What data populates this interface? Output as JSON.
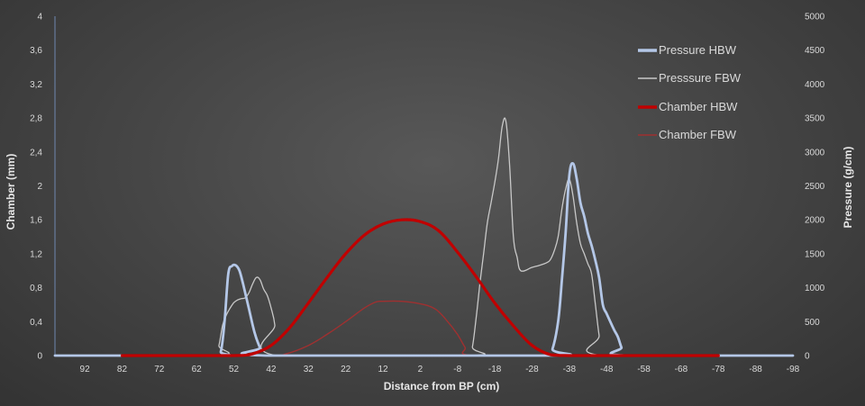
{
  "chart_data": {
    "type": "line",
    "xlabel": "Distance from BP (cm)",
    "ylabel_left": "Chamber (mm)",
    "ylabel_right": "Pressure (g/cm)",
    "x_range": [
      100,
      -98
    ],
    "x_ticks": [
      92,
      82,
      72,
      62,
      52,
      42,
      32,
      22,
      12,
      2,
      -8,
      -18,
      -28,
      -38,
      -48,
      -58,
      -68,
      -78,
      -88,
      -98
    ],
    "y_left_range": [
      0,
      4
    ],
    "y_left_ticks": [
      "0",
      "0,4",
      "0,8",
      "1,2",
      "1,6",
      "2",
      "2,4",
      "2,8",
      "3,2",
      "3,6",
      "4"
    ],
    "y_right_range": [
      0,
      5000
    ],
    "y_right_ticks": [
      "0",
      "500",
      "1000",
      "1500",
      "2000",
      "2500",
      "3000",
      "3500",
      "4000",
      "4500",
      "5000"
    ],
    "grid": false,
    "legend_position": "top-right",
    "series": [
      {
        "name": "Pressure HBW",
        "axis": "right",
        "color": "#b4c7e7",
        "points": [
          [
            100,
            0
          ],
          [
            57,
            0
          ],
          [
            55.5,
            60
          ],
          [
            54.5,
            500
          ],
          [
            53.5,
            1200
          ],
          [
            52.5,
            1320
          ],
          [
            51.5,
            1330
          ],
          [
            50.5,
            1250
          ],
          [
            49.5,
            1050
          ],
          [
            48,
            700
          ],
          [
            46.5,
            350
          ],
          [
            45,
            120
          ],
          [
            43.5,
            0
          ],
          [
            -32,
            0
          ],
          [
            -33.5,
            100
          ],
          [
            -35,
            500
          ],
          [
            -36,
            1100
          ],
          [
            -37,
            1800
          ],
          [
            -38,
            2650
          ],
          [
            -39,
            2830
          ],
          [
            -40,
            2600
          ],
          [
            -41,
            2250
          ],
          [
            -42,
            2050
          ],
          [
            -43,
            1800
          ],
          [
            -44,
            1620
          ],
          [
            -45,
            1400
          ],
          [
            -46,
            1150
          ],
          [
            -47,
            750
          ],
          [
            -48,
            620
          ],
          [
            -49,
            500
          ],
          [
            -50,
            380
          ],
          [
            -51,
            280
          ],
          [
            -52,
            120
          ],
          [
            -53,
            0
          ],
          [
            -98,
            0
          ]
        ]
      },
      {
        "name": "Presssure FBW",
        "axis": "right",
        "color": "#c8c8c8",
        "points": [
          [
            100,
            0
          ],
          [
            57,
            0
          ],
          [
            56,
            150
          ],
          [
            55,
            450
          ],
          [
            54,
            600
          ],
          [
            53,
            700
          ],
          [
            52,
            780
          ],
          [
            51,
            820
          ],
          [
            50,
            840
          ],
          [
            49,
            850
          ],
          [
            48,
            920
          ],
          [
            47,
            1050
          ],
          [
            46,
            1150
          ],
          [
            45,
            1120
          ],
          [
            44,
            980
          ],
          [
            43,
            880
          ],
          [
            42,
            700
          ],
          [
            41,
            450
          ],
          [
            40.5,
            0
          ],
          [
            -11,
            0
          ],
          [
            -12,
            130
          ],
          [
            -13,
            550
          ],
          [
            -14,
            1050
          ],
          [
            -15,
            1500
          ],
          [
            -16,
            1950
          ],
          [
            -17,
            2250
          ],
          [
            -18,
            2550
          ],
          [
            -19,
            2900
          ],
          [
            -20,
            3380
          ],
          [
            -21,
            3450
          ],
          [
            -22,
            2800
          ],
          [
            -23,
            1750
          ],
          [
            -24,
            1450
          ],
          [
            -25,
            1250
          ],
          [
            -28,
            1300
          ],
          [
            -30,
            1330
          ],
          [
            -32,
            1370
          ],
          [
            -33,
            1420
          ],
          [
            -34,
            1550
          ],
          [
            -35,
            1750
          ],
          [
            -36,
            2150
          ],
          [
            -37,
            2450
          ],
          [
            -38,
            2600
          ],
          [
            -39,
            2350
          ],
          [
            -40,
            1950
          ],
          [
            -41,
            1650
          ],
          [
            -42,
            1500
          ],
          [
            -43,
            1350
          ],
          [
            -44,
            1200
          ],
          [
            -45,
            750
          ],
          [
            -46,
            300
          ],
          [
            -47,
            0
          ],
          [
            -98,
            0
          ]
        ]
      },
      {
        "name": "Chamber HBW",
        "axis": "left",
        "color": "#c00000",
        "points": [
          [
            82,
            0
          ],
          [
            72,
            0
          ],
          [
            62,
            0
          ],
          [
            52,
            0
          ],
          [
            47,
            0.02
          ],
          [
            42,
            0.12
          ],
          [
            37,
            0.33
          ],
          [
            32,
            0.62
          ],
          [
            27,
            0.92
          ],
          [
            22,
            1.2
          ],
          [
            17,
            1.42
          ],
          [
            12,
            1.55
          ],
          [
            7,
            1.6
          ],
          [
            2,
            1.58
          ],
          [
            -3,
            1.47
          ],
          [
            -8,
            1.22
          ],
          [
            -13,
            0.93
          ],
          [
            -18,
            0.62
          ],
          [
            -23,
            0.35
          ],
          [
            -28,
            0.12
          ],
          [
            -33,
            0.01
          ],
          [
            -38,
            0
          ],
          [
            -48,
            0
          ],
          [
            -58,
            0
          ],
          [
            -68,
            0
          ],
          [
            -78,
            0
          ]
        ]
      },
      {
        "name": "Chamber FBW",
        "axis": "left",
        "color": "#a03030",
        "points": [
          [
            82,
            0
          ],
          [
            62,
            0
          ],
          [
            42,
            0
          ],
          [
            38,
            0.02
          ],
          [
            32,
            0.12
          ],
          [
            27,
            0.25
          ],
          [
            22,
            0.4
          ],
          [
            17,
            0.56
          ],
          [
            14,
            0.63
          ],
          [
            12,
            0.64
          ],
          [
            7,
            0.64
          ],
          [
            2,
            0.61
          ],
          [
            -2,
            0.55
          ],
          [
            -5,
            0.42
          ],
          [
            -8,
            0.25
          ],
          [
            -10,
            0.1
          ],
          [
            -12,
            0
          ],
          [
            -38,
            0
          ],
          [
            -58,
            0
          ],
          [
            -78,
            0
          ]
        ]
      }
    ]
  }
}
